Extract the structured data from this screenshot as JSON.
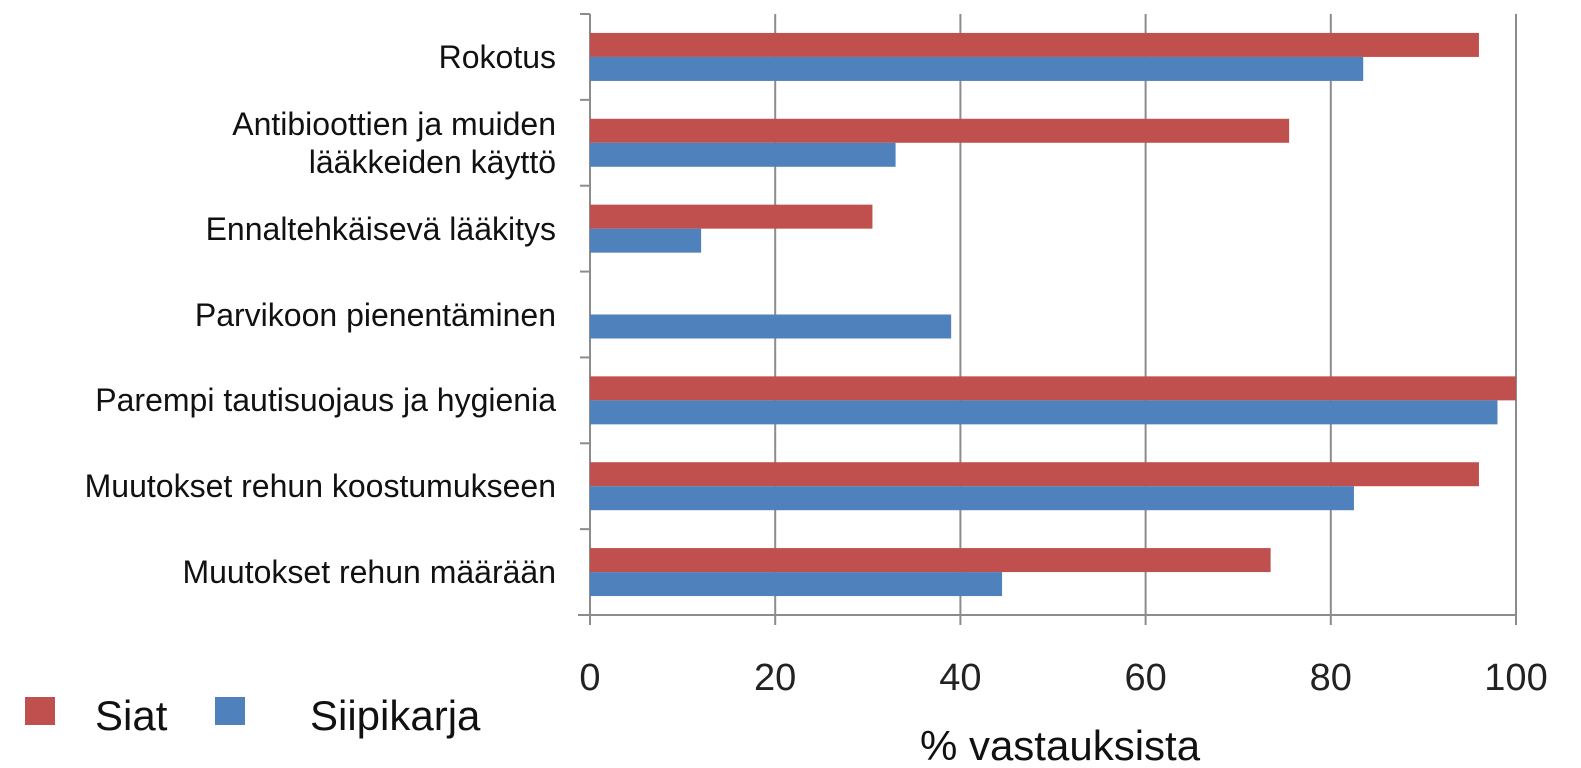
{
  "chart_data": {
    "type": "barh",
    "categories": [
      "Rokotus",
      "Antibioottien ja muiden lääkkeiden käyttö",
      "Ennaltehkäisevä lääkitys",
      "Parvikoon pienentäminen",
      "Parempi tautisuojaus ja hygienia",
      "Muutokset rehun koostumukseen",
      "Muutokset rehun määrään"
    ],
    "series": [
      {
        "name": "Siat",
        "color": "#c0504d",
        "values": [
          96,
          75.5,
          30.5,
          0,
          100,
          96,
          73.5
        ]
      },
      {
        "name": "Siipikarja",
        "color": "#4f81bd",
        "values": [
          83.5,
          33,
          12,
          39,
          98,
          82.5,
          44.5
        ]
      }
    ],
    "xlabel": "% vastauksista",
    "xlim": [
      0,
      100
    ],
    "xticks": [
      0,
      20,
      40,
      60,
      80,
      100
    ],
    "grid": true,
    "legend": "bottom-left"
  }
}
